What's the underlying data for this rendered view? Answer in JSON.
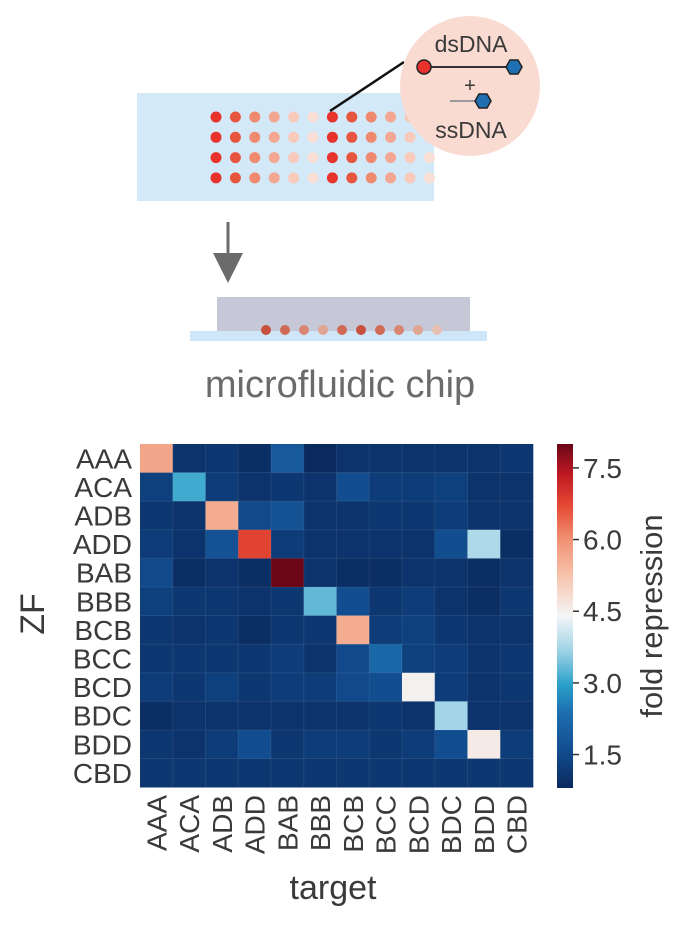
{
  "schematic": {
    "bubble_top_label": "dsDNA",
    "bubble_plus": "+",
    "bubble_bottom_label": "ssDNA",
    "chip_label": "microfluidic chip",
    "colors": {
      "slide": "#d3e9f8",
      "bubble": "#fadbd1",
      "chip_top": "#c7c8d7",
      "chip_base": "#cfe6f8",
      "arrow": "#6b6b6b",
      "ds_left": "#e8322c",
      "ds_right": "#1f6fb3"
    },
    "spot_rows": [
      [
        "#e8322c",
        "#e8553e",
        "#ef8a6f",
        "#f3a793",
        "#f7cabb",
        "#fadfd6",
        "#e8322c",
        "#e8553e",
        "#ef8a6f",
        "#f3a793",
        "#f7cabb",
        "#fadfd6"
      ],
      [
        "#e8322c",
        "#e8553e",
        "#ef8a6f",
        "#f3a793",
        "#f7cabb",
        "#fadfd6",
        "#e8322c",
        "#e8553e",
        "#ef8a6f",
        "#f3a793",
        "#f7cabb",
        "#fadfd6"
      ],
      [
        "#e8322c",
        "#e8553e",
        "#ef8a6f",
        "#f3a793",
        "#f7cabb",
        "#fadfd6",
        "#e8322c",
        "#e8553e",
        "#ef8a6f",
        "#f3a793",
        "#f7cabb",
        "#fadfd6"
      ],
      [
        "#e8322c",
        "#e8553e",
        "#ef8a6f",
        "#f3a793",
        "#f7cabb",
        "#fadfd6",
        "#e8322c",
        "#e8553e",
        "#ef8a6f",
        "#f3a793",
        "#f7cabb",
        "#fadfd6"
      ]
    ],
    "chip_spots": [
      "#c8503e",
      "#d06a55",
      "#d88672",
      "#e0a493",
      "#d06a55",
      "#c8503e",
      "#d06a55",
      "#d88672",
      "#e0a493",
      "#e8c0b3"
    ]
  },
  "chart_data": {
    "type": "heatmap",
    "title": "",
    "xlabel": "target",
    "ylabel": "ZF",
    "x_categories": [
      "AAA",
      "ACA",
      "ADB",
      "ADD",
      "BAB",
      "BBB",
      "BCB",
      "BCC",
      "BCD",
      "BDC",
      "BDD",
      "CBD"
    ],
    "y_categories": [
      "AAA",
      "ACA",
      "ADB",
      "ADD",
      "BAB",
      "BBB",
      "BCB",
      "BCC",
      "BCD",
      "BDC",
      "BDD",
      "CBD"
    ],
    "values": [
      [
        5.7,
        1.0,
        1.1,
        0.9,
        1.9,
        0.8,
        1.0,
        1.0,
        1.0,
        1.0,
        1.0,
        1.1
      ],
      [
        1.3,
        3.1,
        1.2,
        1.0,
        1.1,
        1.0,
        1.6,
        1.2,
        1.2,
        1.3,
        1.0,
        1.0
      ],
      [
        1.1,
        1.0,
        5.6,
        1.5,
        1.7,
        1.0,
        1.0,
        1.1,
        1.1,
        1.2,
        1.0,
        1.0
      ],
      [
        1.2,
        1.0,
        1.7,
        6.8,
        1.2,
        1.0,
        1.0,
        1.0,
        1.0,
        1.6,
        3.8,
        0.9
      ],
      [
        1.5,
        0.9,
        1.0,
        0.9,
        8.0,
        1.0,
        0.9,
        0.9,
        1.0,
        1.0,
        0.9,
        1.0
      ],
      [
        1.3,
        1.1,
        1.1,
        1.0,
        1.1,
        3.3,
        1.6,
        1.1,
        1.2,
        1.0,
        0.9,
        1.1
      ],
      [
        1.1,
        1.0,
        1.1,
        0.9,
        1.1,
        1.1,
        5.6,
        1.2,
        1.3,
        1.1,
        1.0,
        1.0
      ],
      [
        1.1,
        1.1,
        1.1,
        1.1,
        1.2,
        1.0,
        1.5,
        2.2,
        1.3,
        1.2,
        1.0,
        1.1
      ],
      [
        1.2,
        1.1,
        1.3,
        1.1,
        1.2,
        1.2,
        1.5,
        1.6,
        4.5,
        1.2,
        1.0,
        1.1
      ],
      [
        0.9,
        1.0,
        1.0,
        1.0,
        1.0,
        1.0,
        1.0,
        1.1,
        1.0,
        3.7,
        1.0,
        1.0
      ],
      [
        1.1,
        1.0,
        1.2,
        1.6,
        1.1,
        1.2,
        1.2,
        1.1,
        1.2,
        1.6,
        4.6,
        1.2
      ],
      [
        1.1,
        1.1,
        1.1,
        1.1,
        1.1,
        1.1,
        1.1,
        1.1,
        1.1,
        1.1,
        1.1,
        1.1
      ]
    ],
    "colorbar": {
      "label": "fold repression",
      "ticks": [
        1.5,
        3.0,
        4.5,
        6.0,
        7.5
      ],
      "tick_labels": [
        "1.5",
        "3.0",
        "4.5",
        "6.0",
        "7.5"
      ],
      "range": [
        0.8,
        8.0
      ]
    },
    "colorscale": [
      [
        0.0,
        "#0a2a5e"
      ],
      [
        0.1,
        "#114a8c"
      ],
      [
        0.22,
        "#1d6fb0"
      ],
      [
        0.3,
        "#2aa0c9"
      ],
      [
        0.4,
        "#9fd3e6"
      ],
      [
        0.5,
        "#f4f6f7"
      ],
      [
        0.62,
        "#f7c2aa"
      ],
      [
        0.72,
        "#f09274"
      ],
      [
        0.82,
        "#e64a35"
      ],
      [
        0.91,
        "#c01a23"
      ],
      [
        1.0,
        "#6a0617"
      ]
    ],
    "grid": false,
    "legend": "colorbar-right"
  }
}
